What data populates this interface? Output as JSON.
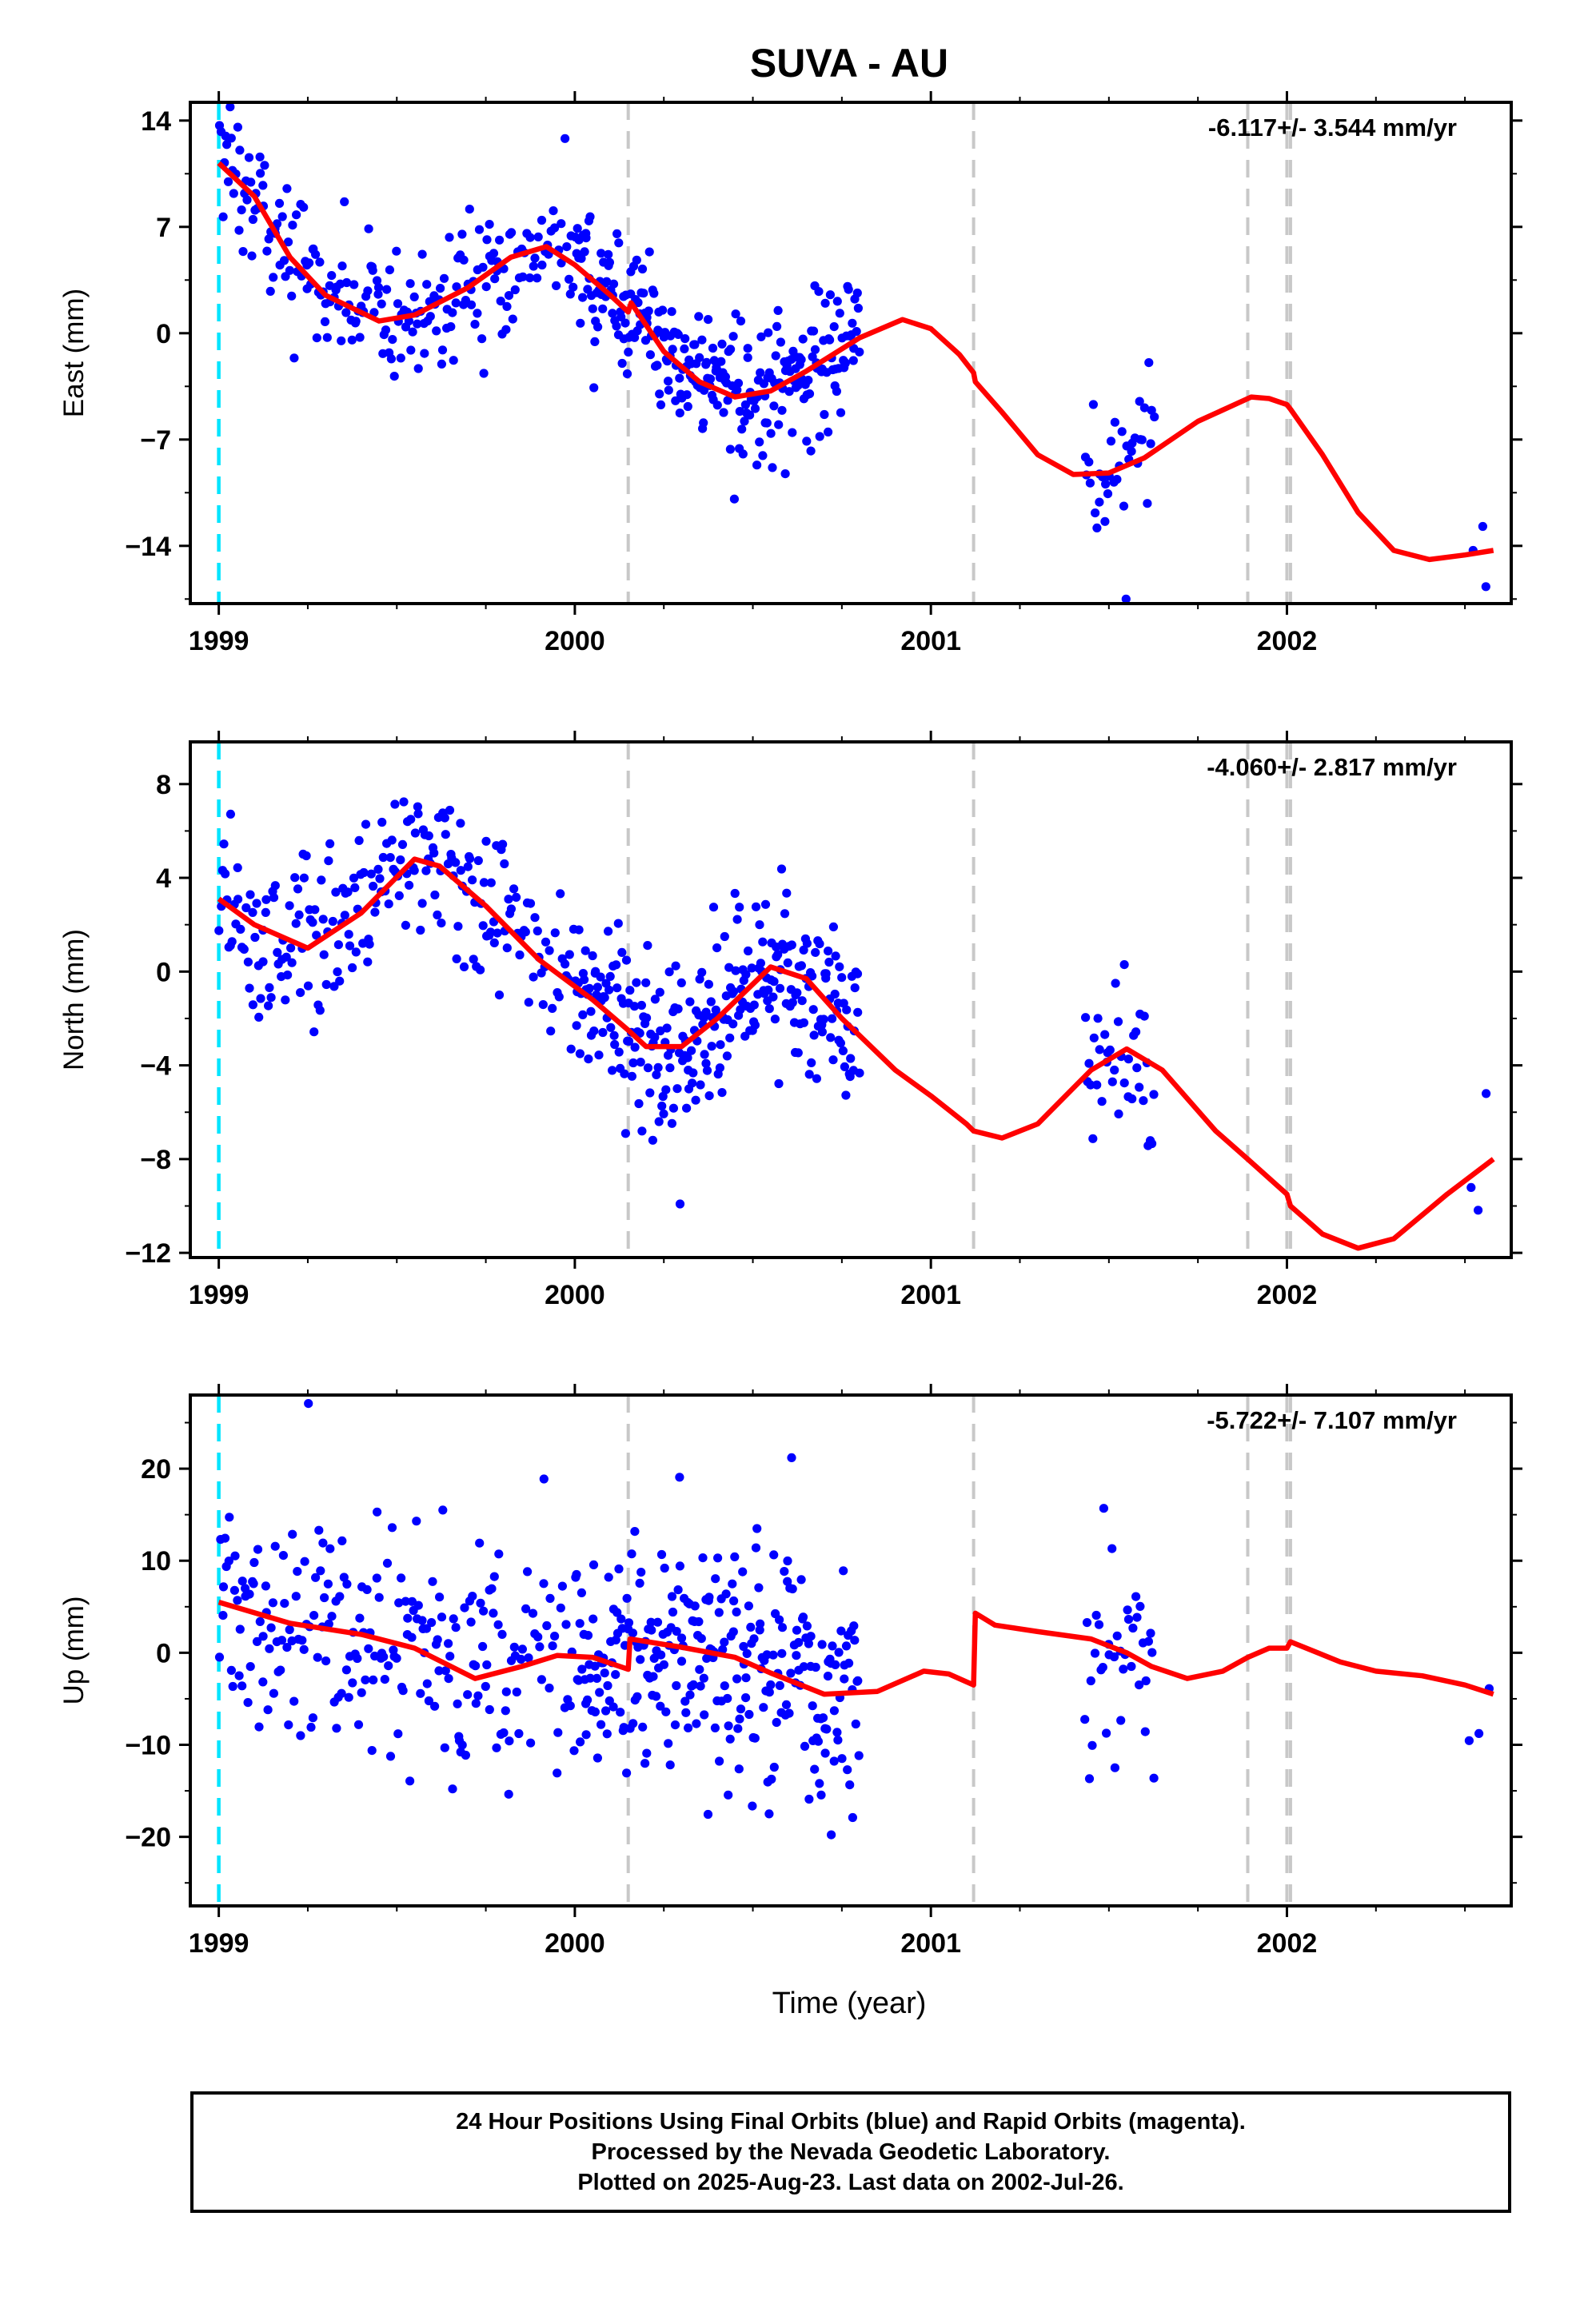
{
  "title": "SUVA - AU",
  "xlabel": "Time (year)",
  "footer": {
    "line1": "24 Hour Positions Using Final Orbits (blue) and Rapid Orbits (magenta).",
    "line2": "Processed by the Nevada Geodetic Laboratory.",
    "line3": "Plotted on 2025-Aug-23. Last data on 2002-Jul-26."
  },
  "colors": {
    "final_points": "#0000ff",
    "model": "#ff0000",
    "first_epoch_line": "#00e5ff",
    "event_lines": "#c8c8c8",
    "frame": "#000000"
  },
  "chart_data": [
    {
      "type": "scatter",
      "component": "east",
      "ylabel": "East (mm)",
      "rate_label": "-6.117+/- 3.544 mm/yr",
      "xlim": [
        1998.92,
        2002.63
      ],
      "ylim": [
        -17.8,
        15.2
      ],
      "xticks": [
        1999,
        2000,
        2001,
        2002
      ],
      "yticks": [
        -14,
        -7,
        0,
        7,
        14
      ],
      "grid": false,
      "model_knots": [
        [
          1999.0,
          11.2
        ],
        [
          1999.1,
          9.0
        ],
        [
          1999.2,
          5.0
        ],
        [
          1999.3,
          2.5
        ],
        [
          1999.45,
          0.8
        ],
        [
          1999.55,
          1.2
        ],
        [
          1999.7,
          3.0
        ],
        [
          1999.82,
          5.0
        ],
        [
          1999.92,
          5.7
        ],
        [
          2000.0,
          4.5
        ],
        [
          2000.1,
          2.5
        ],
        [
          2000.15,
          1.4
        ],
        [
          2000.158,
          2.0
        ],
        [
          2000.25,
          -1.2
        ],
        [
          2000.35,
          -3.2
        ],
        [
          2000.45,
          -4.2
        ],
        [
          2000.55,
          -3.8
        ],
        [
          2000.65,
          -2.5
        ],
        [
          2000.8,
          -0.3
        ],
        [
          2000.92,
          0.9
        ],
        [
          2001.0,
          0.3
        ],
        [
          2001.08,
          -1.4
        ],
        [
          2001.12,
          -2.6
        ],
        [
          2001.125,
          -3.2
        ],
        [
          2001.2,
          -5.2
        ],
        [
          2001.3,
          -8.0
        ],
        [
          2001.4,
          -9.3
        ],
        [
          2001.5,
          -9.2
        ],
        [
          2001.6,
          -8.2
        ],
        [
          2001.75,
          -5.8
        ],
        [
          2001.9,
          -4.2
        ],
        [
          2001.95,
          -4.3
        ],
        [
          2002.0,
          -4.7
        ],
        [
          2002.01,
          -5.0
        ],
        [
          2002.1,
          -8.0
        ],
        [
          2002.2,
          -11.8
        ],
        [
          2002.3,
          -14.3
        ],
        [
          2002.4,
          -14.9
        ],
        [
          2002.5,
          -14.6
        ],
        [
          2002.58,
          -14.3
        ]
      ],
      "data_segments": [
        {
          "t0": 1999.0,
          "t1": 1999.12,
          "k": 0.66
        },
        {
          "t0": 1999.12,
          "t1": 1999.82,
          "k": 0.64
        },
        {
          "t0": 1999.82,
          "t1": 2000.0,
          "k": 0.5
        },
        {
          "t0": 2000.0,
          "t1": 2000.8,
          "k": 0.96
        },
        {
          "t0": 2001.43,
          "t1": 2001.63,
          "k": 0.5
        },
        {
          "t0": 2002.51,
          "t1": 2002.58,
          "k": 0.12
        }
      ],
      "scatter_sd": 2.3,
      "event_lines": [
        2000.15,
        2001.12,
        2001.89,
        2002.0,
        2002.01
      ],
      "first_epoch_line": 1999.0
    },
    {
      "type": "scatter",
      "component": "north",
      "ylabel": "North (mm)",
      "rate_label": "-4.060+/- 2.817 mm/yr",
      "xlim": [
        1998.92,
        2002.63
      ],
      "ylim": [
        -12.2,
        9.8
      ],
      "xticks": [
        1999,
        2000,
        2001,
        2002
      ],
      "yticks": [
        -12,
        -8,
        -4,
        0,
        4,
        8
      ],
      "grid": false,
      "model_knots": [
        [
          1999.0,
          3.1
        ],
        [
          1999.1,
          2.0
        ],
        [
          1999.25,
          1.0
        ],
        [
          1999.4,
          2.5
        ],
        [
          1999.55,
          4.8
        ],
        [
          1999.62,
          4.5
        ],
        [
          1999.75,
          2.8
        ],
        [
          1999.9,
          0.5
        ],
        [
          2000.05,
          -1.2
        ],
        [
          2000.15,
          -2.5
        ],
        [
          2000.2,
          -3.2
        ],
        [
          2000.3,
          -3.2
        ],
        [
          2000.4,
          -2.0
        ],
        [
          2000.55,
          0.2
        ],
        [
          2000.65,
          -0.3
        ],
        [
          2000.75,
          -2.0
        ],
        [
          2000.9,
          -4.2
        ],
        [
          2001.0,
          -5.3
        ],
        [
          2001.1,
          -6.5
        ],
        [
          2001.12,
          -6.8
        ],
        [
          2001.2,
          -7.1
        ],
        [
          2001.3,
          -6.5
        ],
        [
          2001.45,
          -4.2
        ],
        [
          2001.55,
          -3.3
        ],
        [
          2001.65,
          -4.2
        ],
        [
          2001.8,
          -6.8
        ],
        [
          2001.89,
          -8.0
        ],
        [
          2002.0,
          -9.5
        ],
        [
          2002.01,
          -10.0
        ],
        [
          2002.1,
          -11.2
        ],
        [
          2002.2,
          -11.8
        ],
        [
          2002.3,
          -11.4
        ],
        [
          2002.45,
          -9.5
        ],
        [
          2002.58,
          -8.0
        ]
      ],
      "data_segments": [
        {
          "t0": 1999.0,
          "t1": 1999.12,
          "k": 0.66
        },
        {
          "t0": 1999.12,
          "t1": 1999.82,
          "k": 0.64
        },
        {
          "t0": 1999.82,
          "t1": 2000.0,
          "k": 0.5
        },
        {
          "t0": 2000.0,
          "t1": 2000.8,
          "k": 0.96
        },
        {
          "t0": 2001.43,
          "t1": 2001.63,
          "k": 0.5
        },
        {
          "t0": 2002.51,
          "t1": 2002.58,
          "k": 0.12
        }
      ],
      "scatter_sd": 1.9,
      "event_lines": [
        2000.15,
        2001.12,
        2001.89,
        2002.0,
        2002.01
      ],
      "first_epoch_line": 1999.0
    },
    {
      "type": "scatter",
      "component": "up",
      "ylabel": "Up (mm)",
      "rate_label": "-5.722+/- 7.107 mm/yr",
      "xlim": [
        1998.92,
        2002.63
      ],
      "ylim": [
        -27.5,
        28.0
      ],
      "xticks": [
        1999,
        2000,
        2001,
        2002
      ],
      "yticks": [
        -20,
        -10,
        0,
        10,
        20
      ],
      "grid": false,
      "model_knots": [
        [
          1999.0,
          5.5
        ],
        [
          1999.2,
          3.2
        ],
        [
          1999.4,
          2.0
        ],
        [
          1999.55,
          0.5
        ],
        [
          1999.72,
          -2.8
        ],
        [
          1999.85,
          -1.5
        ],
        [
          1999.95,
          -0.3
        ],
        [
          2000.05,
          -0.5
        ],
        [
          2000.15,
          -1.8
        ],
        [
          2000.155,
          1.5
        ],
        [
          2000.3,
          0.6
        ],
        [
          2000.45,
          -0.5
        ],
        [
          2000.55,
          -2.2
        ],
        [
          2000.7,
          -4.5
        ],
        [
          2000.85,
          -4.2
        ],
        [
          2000.98,
          -2.0
        ],
        [
          2001.05,
          -2.3
        ],
        [
          2001.12,
          -3.5
        ],
        [
          2001.125,
          4.3
        ],
        [
          2001.18,
          3.0
        ],
        [
          2001.3,
          2.3
        ],
        [
          2001.45,
          1.5
        ],
        [
          2001.55,
          0.0
        ],
        [
          2001.62,
          -1.5
        ],
        [
          2001.72,
          -2.8
        ],
        [
          2001.82,
          -2.0
        ],
        [
          2001.89,
          -0.5
        ],
        [
          2001.95,
          0.5
        ],
        [
          2002.0,
          0.5
        ],
        [
          2002.01,
          1.2
        ],
        [
          2002.15,
          -1.0
        ],
        [
          2002.25,
          -2.0
        ],
        [
          2002.38,
          -2.5
        ],
        [
          2002.5,
          -3.5
        ],
        [
          2002.58,
          -4.5
        ]
      ],
      "data_segments": [
        {
          "t0": 1999.0,
          "t1": 1999.12,
          "k": 0.66
        },
        {
          "t0": 1999.12,
          "t1": 1999.82,
          "k": 0.64
        },
        {
          "t0": 1999.82,
          "t1": 2000.0,
          "k": 0.5
        },
        {
          "t0": 2000.0,
          "t1": 2000.8,
          "k": 0.96
        },
        {
          "t0": 2001.43,
          "t1": 2001.63,
          "k": 0.5
        },
        {
          "t0": 2002.51,
          "t1": 2002.58,
          "k": 0.12
        }
      ],
      "scatter_sd": 6.5,
      "event_lines": [
        2000.15,
        2001.12,
        2001.89,
        2002.0,
        2002.01
      ],
      "first_epoch_line": 1999.0
    }
  ]
}
